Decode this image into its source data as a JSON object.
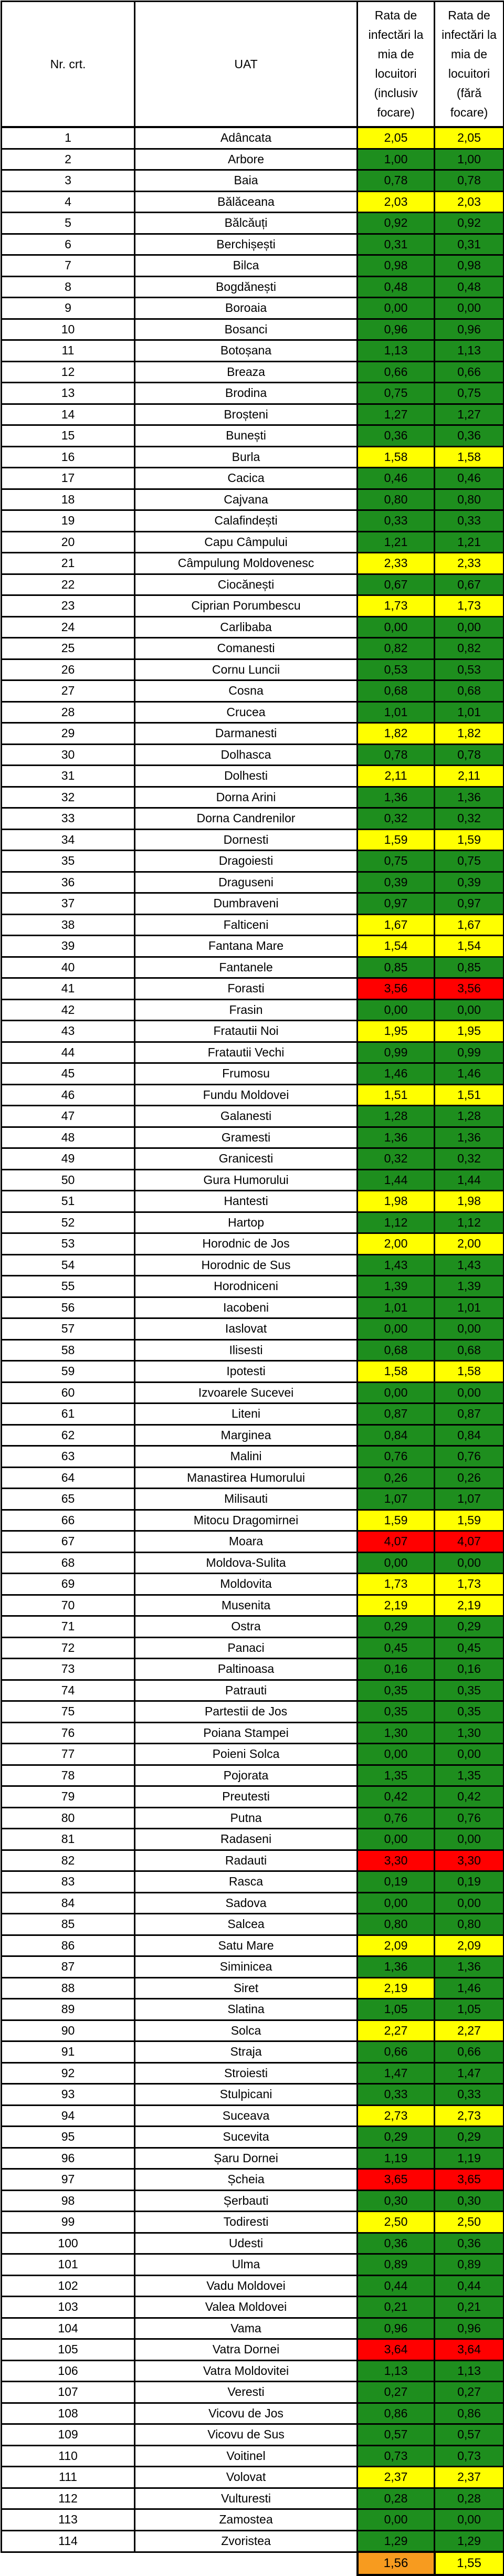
{
  "header": {
    "nr": "Nr. crt.",
    "uat": "UAT",
    "rate_inclusive": "Rata de infectări la mia de locuitori (inclusiv focare)",
    "rate_fara": "Rata de infectări la mia de locuitori (fără focare)"
  },
  "colors": {
    "green": "#1E8E1E",
    "yellow": "#FFFF00",
    "red": "#FF0000",
    "orange": "#F79B1F"
  },
  "rows": [
    [
      1,
      "Adâncata",
      "2,05",
      "yellow",
      "2,05",
      "yellow"
    ],
    [
      2,
      "Arbore",
      "1,00",
      "green",
      "1,00",
      "green"
    ],
    [
      3,
      "Baia",
      "0,78",
      "green",
      "0,78",
      "green"
    ],
    [
      4,
      "Bălăceana",
      "2,03",
      "yellow",
      "2,03",
      "yellow"
    ],
    [
      5,
      "Bălcăuți",
      "0,92",
      "green",
      "0,92",
      "green"
    ],
    [
      6,
      "Berchișești",
      "0,31",
      "green",
      "0,31",
      "green"
    ],
    [
      7,
      "Bilca",
      "0,98",
      "green",
      "0,98",
      "green"
    ],
    [
      8,
      "Bogdănești",
      "0,48",
      "green",
      "0,48",
      "green"
    ],
    [
      9,
      "Boroaia",
      "0,00",
      "green",
      "0,00",
      "green"
    ],
    [
      10,
      "Bosanci",
      "0,96",
      "green",
      "0,96",
      "green"
    ],
    [
      11,
      "Botoșana",
      "1,13",
      "green",
      "1,13",
      "green"
    ],
    [
      12,
      "Breaza",
      "0,66",
      "green",
      "0,66",
      "green"
    ],
    [
      13,
      "Brodina",
      "0,75",
      "green",
      "0,75",
      "green"
    ],
    [
      14,
      "Broșteni",
      "1,27",
      "green",
      "1,27",
      "green"
    ],
    [
      15,
      "Bunești",
      "0,36",
      "green",
      "0,36",
      "green"
    ],
    [
      16,
      "Burla",
      "1,58",
      "yellow",
      "1,58",
      "yellow"
    ],
    [
      17,
      "Cacica",
      "0,46",
      "green",
      "0,46",
      "green"
    ],
    [
      18,
      "Cajvana",
      "0,80",
      "green",
      "0,80",
      "green"
    ],
    [
      19,
      "Calafindești",
      "0,33",
      "green",
      "0,33",
      "green"
    ],
    [
      20,
      "Capu Câmpului",
      "1,21",
      "green",
      "1,21",
      "green"
    ],
    [
      21,
      "Câmpulung Moldovenesc",
      "2,33",
      "yellow",
      "2,33",
      "yellow"
    ],
    [
      22,
      "Ciocănești",
      "0,67",
      "green",
      "0,67",
      "green"
    ],
    [
      23,
      "Ciprian Porumbescu",
      "1,73",
      "yellow",
      "1,73",
      "yellow"
    ],
    [
      24,
      "Carlibaba",
      "0,00",
      "green",
      "0,00",
      "green"
    ],
    [
      25,
      "Comanesti",
      "0,82",
      "green",
      "0,82",
      "green"
    ],
    [
      26,
      "Cornu Luncii",
      "0,53",
      "green",
      "0,53",
      "green"
    ],
    [
      27,
      "Cosna",
      "0,68",
      "green",
      "0,68",
      "green"
    ],
    [
      28,
      "Crucea",
      "1,01",
      "green",
      "1,01",
      "green"
    ],
    [
      29,
      "Darmanesti",
      "1,82",
      "yellow",
      "1,82",
      "yellow"
    ],
    [
      30,
      "Dolhasca",
      "0,78",
      "green",
      "0,78",
      "green"
    ],
    [
      31,
      "Dolhesti",
      "2,11",
      "yellow",
      "2,11",
      "yellow"
    ],
    [
      32,
      "Dorna Arini",
      "1,36",
      "green",
      "1,36",
      "green"
    ],
    [
      33,
      "Dorna Candrenilor",
      "0,32",
      "green",
      "0,32",
      "green"
    ],
    [
      34,
      "Dornesti",
      "1,59",
      "yellow",
      "1,59",
      "yellow"
    ],
    [
      35,
      "Dragoiesti",
      "0,75",
      "green",
      "0,75",
      "green"
    ],
    [
      36,
      "Draguseni",
      "0,39",
      "green",
      "0,39",
      "green"
    ],
    [
      37,
      "Dumbraveni",
      "0,97",
      "green",
      "0,97",
      "green"
    ],
    [
      38,
      "Falticeni",
      "1,67",
      "yellow",
      "1,67",
      "yellow"
    ],
    [
      39,
      "Fantana Mare",
      "1,54",
      "yellow",
      "1,54",
      "yellow"
    ],
    [
      40,
      "Fantanele",
      "0,85",
      "green",
      "0,85",
      "green"
    ],
    [
      41,
      "Forasti",
      "3,56",
      "red",
      "3,56",
      "red"
    ],
    [
      42,
      "Frasin",
      "0,00",
      "green",
      "0,00",
      "green"
    ],
    [
      43,
      "Fratautii Noi",
      "1,95",
      "yellow",
      "1,95",
      "yellow"
    ],
    [
      44,
      "Fratautii Vechi",
      "0,99",
      "green",
      "0,99",
      "green"
    ],
    [
      45,
      "Frumosu",
      "1,46",
      "green",
      "1,46",
      "green"
    ],
    [
      46,
      "Fundu Moldovei",
      "1,51",
      "yellow",
      "1,51",
      "yellow"
    ],
    [
      47,
      "Galanesti",
      "1,28",
      "green",
      "1,28",
      "green"
    ],
    [
      48,
      "Gramesti",
      "1,36",
      "green",
      "1,36",
      "green"
    ],
    [
      49,
      "Granicesti",
      "0,32",
      "green",
      "0,32",
      "green"
    ],
    [
      50,
      "Gura Humorului",
      "1,44",
      "green",
      "1,44",
      "green"
    ],
    [
      51,
      "Hantesti",
      "1,98",
      "yellow",
      "1,98",
      "yellow"
    ],
    [
      52,
      "Hartop",
      "1,12",
      "green",
      "1,12",
      "green"
    ],
    [
      53,
      "Horodnic de Jos",
      "2,00",
      "yellow",
      "2,00",
      "yellow"
    ],
    [
      54,
      "Horodnic de Sus",
      "1,43",
      "green",
      "1,43",
      "green"
    ],
    [
      55,
      "Horodniceni",
      "1,39",
      "green",
      "1,39",
      "green"
    ],
    [
      56,
      "Iacobeni",
      "1,01",
      "green",
      "1,01",
      "green"
    ],
    [
      57,
      "Iaslovat",
      "0,00",
      "green",
      "0,00",
      "green"
    ],
    [
      58,
      "Ilisesti",
      "0,68",
      "green",
      "0,68",
      "green"
    ],
    [
      59,
      "Ipotesti",
      "1,58",
      "yellow",
      "1,58",
      "yellow"
    ],
    [
      60,
      "Izvoarele Sucevei",
      "0,00",
      "green",
      "0,00",
      "green"
    ],
    [
      61,
      "Liteni",
      "0,87",
      "green",
      "0,87",
      "green"
    ],
    [
      62,
      "Marginea",
      "0,84",
      "green",
      "0,84",
      "green"
    ],
    [
      63,
      "Malini",
      "0,76",
      "green",
      "0,76",
      "green"
    ],
    [
      64,
      "Manastirea Humorului",
      "0,26",
      "green",
      "0,26",
      "green"
    ],
    [
      65,
      "Milisauti",
      "1,07",
      "green",
      "1,07",
      "green"
    ],
    [
      66,
      "Mitocu Dragomirnei",
      "1,59",
      "yellow",
      "1,59",
      "yellow"
    ],
    [
      67,
      "Moara",
      "4,07",
      "red",
      "4,07",
      "red"
    ],
    [
      68,
      "Moldova-Sulita",
      "0,00",
      "green",
      "0,00",
      "green"
    ],
    [
      69,
      "Moldovita",
      "1,73",
      "yellow",
      "1,73",
      "yellow"
    ],
    [
      70,
      "Musenita",
      "2,19",
      "yellow",
      "2,19",
      "yellow"
    ],
    [
      71,
      "Ostra",
      "0,29",
      "green",
      "0,29",
      "green"
    ],
    [
      72,
      "Panaci",
      "0,45",
      "green",
      "0,45",
      "green"
    ],
    [
      73,
      "Paltinoasa",
      "0,16",
      "green",
      "0,16",
      "green"
    ],
    [
      74,
      "Patrauti",
      "0,35",
      "green",
      "0,35",
      "green"
    ],
    [
      75,
      "Partestii de Jos",
      "0,35",
      "green",
      "0,35",
      "green"
    ],
    [
      76,
      "Poiana Stampei",
      "1,30",
      "green",
      "1,30",
      "green"
    ],
    [
      77,
      "Poieni Solca",
      "0,00",
      "green",
      "0,00",
      "green"
    ],
    [
      78,
      "Pojorata",
      "1,35",
      "green",
      "1,35",
      "green"
    ],
    [
      79,
      "Preutesti",
      "0,42",
      "green",
      "0,42",
      "green"
    ],
    [
      80,
      "Putna",
      "0,76",
      "green",
      "0,76",
      "green"
    ],
    [
      81,
      "Radaseni",
      "0,00",
      "green",
      "0,00",
      "green"
    ],
    [
      82,
      "Radauti",
      "3,30",
      "red",
      "3,30",
      "red"
    ],
    [
      83,
      "Rasca",
      "0,19",
      "green",
      "0,19",
      "green"
    ],
    [
      84,
      "Sadova",
      "0,00",
      "green",
      "0,00",
      "green"
    ],
    [
      85,
      "Salcea",
      "0,80",
      "green",
      "0,80",
      "green"
    ],
    [
      86,
      "Satu Mare",
      "2,09",
      "yellow",
      "2,09",
      "yellow"
    ],
    [
      87,
      "Siminicea",
      "1,36",
      "green",
      "1,36",
      "green"
    ],
    [
      88,
      "Siret",
      "2,19",
      "yellow",
      "1,46",
      "green"
    ],
    [
      89,
      "Slatina",
      "1,05",
      "green",
      "1,05",
      "green"
    ],
    [
      90,
      "Solca",
      "2,27",
      "yellow",
      "2,27",
      "yellow"
    ],
    [
      91,
      "Straja",
      "0,66",
      "green",
      "0,66",
      "green"
    ],
    [
      92,
      "Stroiesti",
      "1,47",
      "green",
      "1,47",
      "green"
    ],
    [
      93,
      "Stulpicani",
      "0,33",
      "green",
      "0,33",
      "green"
    ],
    [
      94,
      "Suceava",
      "2,73",
      "yellow",
      "2,73",
      "yellow"
    ],
    [
      95,
      "Sucevita",
      "0,29",
      "green",
      "0,29",
      "green"
    ],
    [
      96,
      "Șaru Dornei",
      "1,19",
      "green",
      "1,19",
      "green"
    ],
    [
      97,
      "Șcheia",
      "3,65",
      "red",
      "3,65",
      "red"
    ],
    [
      98,
      "Șerbauti",
      "0,30",
      "green",
      "0,30",
      "green"
    ],
    [
      99,
      "Todiresti",
      "2,50",
      "yellow",
      "2,50",
      "yellow"
    ],
    [
      100,
      "Udesti",
      "0,36",
      "green",
      "0,36",
      "green"
    ],
    [
      101,
      "Ulma",
      "0,89",
      "green",
      "0,89",
      "green"
    ],
    [
      102,
      "Vadu Moldovei",
      "0,44",
      "green",
      "0,44",
      "green"
    ],
    [
      103,
      "Valea Moldovei",
      "0,21",
      "green",
      "0,21",
      "green"
    ],
    [
      104,
      "Vama",
      "0,96",
      "green",
      "0,96",
      "green"
    ],
    [
      105,
      "Vatra Dornei",
      "3,64",
      "red",
      "3,64",
      "red"
    ],
    [
      106,
      "Vatra Moldovitei",
      "1,13",
      "green",
      "1,13",
      "green"
    ],
    [
      107,
      "Veresti",
      "0,27",
      "green",
      "0,27",
      "green"
    ],
    [
      108,
      "Vicovu de Jos",
      "0,86",
      "green",
      "0,86",
      "green"
    ],
    [
      109,
      "Vicovu de Sus",
      "0,57",
      "green",
      "0,57",
      "green"
    ],
    [
      110,
      "Voitinel",
      "0,73",
      "green",
      "0,73",
      "green"
    ],
    [
      111,
      "Volovat",
      "2,37",
      "yellow",
      "2,37",
      "yellow"
    ],
    [
      112,
      "Vulturesti",
      "0,28",
      "green",
      "0,28",
      "green"
    ],
    [
      113,
      "Zamostea",
      "0,00",
      "green",
      "0,00",
      "green"
    ],
    [
      114,
      "Zvoristea",
      "1,29",
      "green",
      "1,29",
      "green"
    ]
  ],
  "total": {
    "inclusive": "1,56",
    "inclusive_color": "orange",
    "fara": "1,55",
    "fara_color": "yellow"
  }
}
